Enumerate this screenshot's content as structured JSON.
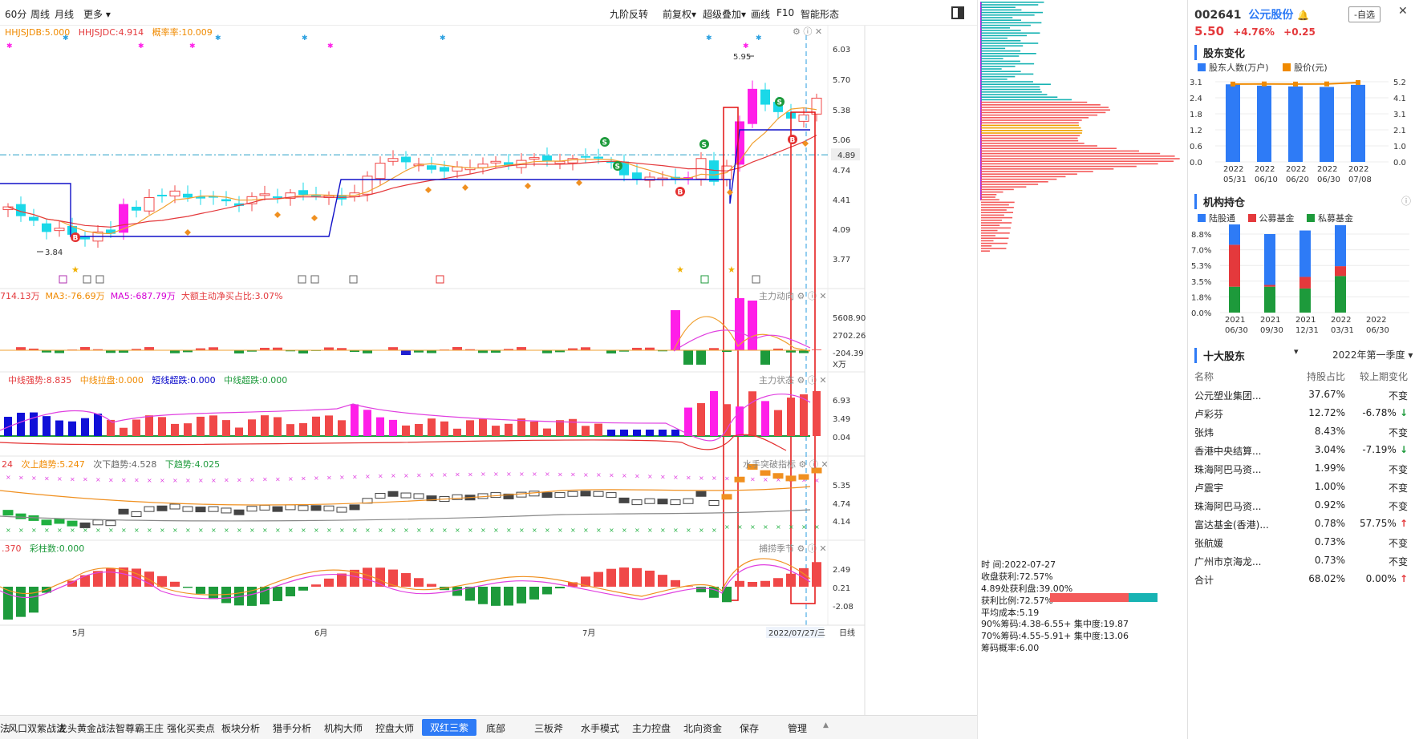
{
  "toolbar": {
    "left_items": [
      "60分",
      "周线",
      "月线",
      "更多"
    ],
    "right_items": [
      "九阶反转",
      "前复权",
      "超级叠加",
      "画线",
      "F10",
      "智能形态"
    ]
  },
  "main_panel": {
    "indicator_labels": [
      {
        "text": "HHJSJDB:5.000",
        "color": "#f08a00"
      },
      {
        "text": "HHJSJDC:4.914",
        "color": "#e4393c"
      },
      {
        "text": "概率率:10.009",
        "color": "#f08a00"
      }
    ],
    "price_ticks": [
      "6.03",
      "5.70",
      "5.38",
      "5.06",
      "4.74",
      "4.41",
      "4.09",
      "3.77"
    ],
    "current_price_tag": "4.89",
    "high_label": "5.95",
    "low_label": "3.84"
  },
  "panel2": {
    "labels": [
      {
        "text": "714.13万",
        "color": "#e4393c"
      },
      {
        "text": "MA3:-76.69万",
        "color": "#f08a00"
      },
      {
        "text": "MA5:-687.79万",
        "color": "#d400d4"
      },
      {
        "text": "大额主动净买占比:3.07%",
        "color": "#e4393c"
      }
    ],
    "name": "主力动向",
    "ticks": [
      "5608.90",
      "2702.26",
      "-204.39"
    ],
    "unit": "X万"
  },
  "panel3": {
    "labels": [
      {
        "text": "中线强势:8.835",
        "color": "#e4393c"
      },
      {
        "text": "中线拉盘:0.000",
        "color": "#f08a00"
      },
      {
        "text": "短线超跌:0.000",
        "color": "#0000c8"
      },
      {
        "text": "中线超跌:0.000",
        "color": "#1d9a3b"
      }
    ],
    "name": "主力状态",
    "ticks": [
      "6.93",
      "3.49",
      "0.04"
    ]
  },
  "panel4": {
    "labels": [
      {
        "text": "24",
        "color": "#e4393c"
      },
      {
        "text": "次上趋势:5.247",
        "color": "#f08a00"
      },
      {
        "text": "次下趋势:4.528",
        "color": "#666666"
      },
      {
        "text": "下趋势:4.025",
        "color": "#1d9a3b"
      }
    ],
    "name": "水手突破指标",
    "ticks": [
      "5.35",
      "4.74",
      "4.14"
    ]
  },
  "panel5": {
    "labels": [
      {
        "text": ".370",
        "color": "#e4393c"
      },
      {
        "text": "彩柱数:0.000",
        "color": "#1d9a3b"
      }
    ],
    "name": "捕捞季节",
    "ticks": [
      "2.49",
      "0.21",
      "-2.08"
    ]
  },
  "time_axis": {
    "labels": [
      "5月",
      "6月",
      "7月"
    ],
    "cursor_date": "2022/07/27/三",
    "period": "日线"
  },
  "bottom_tabs": [
    "法",
    "风口双紫战法",
    "龙头黄金战法",
    "智尊霸王庄",
    "强化买卖点",
    "板块分析",
    "猎手分析",
    "机构大师",
    "控盘大师",
    "双红三紫",
    "底部",
    "三板斧",
    "水手模式",
    "主力控盘",
    "北向资金",
    "保存",
    "管理"
  ],
  "active_tab": "双红三紫",
  "chip_info": {
    "lines": [
      "时    间:2022-07-27",
      "收盘获利:72.57%",
      "4.89处获利盘:39.00%",
      "获利比例:72.57%",
      "平均成本:5.19",
      "90%筹码:4.38-6.55+ 集中度:19.87",
      "70%筹码:4.55-5.91+ 集中度:13.06",
      "筹码概率:6.00"
    ]
  },
  "stock": {
    "code": "002641",
    "name": "公元股份",
    "price": "5.50",
    "change_pct": "+4.76%",
    "change": "+0.25",
    "watch_button": "-自选"
  },
  "shareholder_change": {
    "title": "股东变化",
    "legend": [
      "股东人数(万户)",
      "股价(元)"
    ],
    "chart_data": {
      "type": "bar",
      "categories": [
        "2022\n05/31",
        "2022\n06/10",
        "2022\n06/20",
        "2022\n06/30",
        "2022\n07/08"
      ],
      "series": [
        {
          "name": "股东人数(万户)",
          "values": [
            3.0,
            2.95,
            2.92,
            2.9,
            2.98
          ],
          "color": "#2e7bf6"
        },
        {
          "name": "股价(元)",
          "values": [
            5.05,
            5.06,
            5.05,
            5.06,
            5.15
          ],
          "color": "#f08a00",
          "type": "line"
        }
      ],
      "y_left_ticks": [
        "3.1",
        "2.4",
        "1.8",
        "1.2",
        "0.6",
        "0.0"
      ],
      "y_right_ticks": [
        "5.2",
        "4.1",
        "3.1",
        "2.1",
        "1.0",
        "0.0"
      ],
      "ylim_left": [
        0,
        3.1
      ],
      "ylim_right": [
        0,
        5.2
      ]
    }
  },
  "institution": {
    "title": "机构持仓",
    "legend": [
      "陆股通",
      "公募基金",
      "私募基金"
    ],
    "chart_data": {
      "type": "bar",
      "categories": [
        "2021\n06/30",
        "2021\n09/30",
        "2021\n12/31",
        "2022\n03/31",
        "2022\n06/30"
      ],
      "series": [
        {
          "name": "私募基金",
          "values": [
            2.9,
            2.9,
            2.7,
            4.1,
            0
          ],
          "color": "#1d9a3b"
        },
        {
          "name": "公募基金",
          "values": [
            4.7,
            0.2,
            1.3,
            1.1,
            0
          ],
          "color": "#e4393c"
        },
        {
          "name": "陆股通",
          "values": [
            4.5,
            5.7,
            5.2,
            4.6,
            0
          ],
          "color": "#2e7bf6"
        }
      ],
      "y_ticks": [
        "8.8%",
        "7.0%",
        "5.3%",
        "3.5%",
        "1.8%",
        "0.0%"
      ],
      "ylim": [
        0,
        8.8
      ]
    }
  },
  "top_holders": {
    "title": "十大股东",
    "period": "2022年第一季度",
    "headers": [
      "名称",
      "持股占比",
      "较上期变化"
    ],
    "rows": [
      {
        "name": "公元塑业集团...",
        "pct": "37.67%",
        "chg": "不变",
        "dir": ""
      },
      {
        "name": "卢彩芬",
        "pct": "12.72%",
        "chg": "-6.78%",
        "dir": "down"
      },
      {
        "name": "张炜",
        "pct": "8.43%",
        "chg": "不变",
        "dir": ""
      },
      {
        "name": "香港中央结算...",
        "pct": "3.04%",
        "chg": "-7.19%",
        "dir": "down"
      },
      {
        "name": "珠海阿巴马资...",
        "pct": "1.99%",
        "chg": "不变",
        "dir": ""
      },
      {
        "name": "卢震宇",
        "pct": "1.00%",
        "chg": "不变",
        "dir": ""
      },
      {
        "name": "珠海阿巴马资...",
        "pct": "0.92%",
        "chg": "不变",
        "dir": ""
      },
      {
        "name": "富达基金(香港)...",
        "pct": "0.78%",
        "chg": "57.75%",
        "dir": "up"
      },
      {
        "name": "张航媛",
        "pct": "0.73%",
        "chg": "不变",
        "dir": ""
      },
      {
        "name": "广州市京海龙...",
        "pct": "0.73%",
        "chg": "不变",
        "dir": ""
      }
    ],
    "total": {
      "name": "合计",
      "pct": "68.02%",
      "chg": "0.00%",
      "dir": "up"
    }
  },
  "colors": {
    "up": "#e4393c",
    "down": "#1d9a3b",
    "accent": "#2e7bf6",
    "magenta": "#ff00ff",
    "cyan": "#00e5ff"
  }
}
